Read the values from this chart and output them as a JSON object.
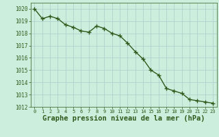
{
  "x": [
    0,
    1,
    2,
    3,
    4,
    5,
    6,
    7,
    8,
    9,
    10,
    11,
    12,
    13,
    14,
    15,
    16,
    17,
    18,
    19,
    20,
    21,
    22,
    23
  ],
  "y": [
    1020.0,
    1019.2,
    1019.4,
    1019.2,
    1018.7,
    1018.5,
    1018.2,
    1018.1,
    1018.6,
    1018.4,
    1018.0,
    1017.8,
    1017.2,
    1016.5,
    1015.9,
    1015.0,
    1014.6,
    1013.5,
    1013.3,
    1013.1,
    1012.6,
    1012.5,
    1012.4,
    1012.3
  ],
  "line_color": "#2d5a1b",
  "marker_color": "#2d5a1b",
  "bg_color": "#cceedd",
  "grid_color": "#aacccc",
  "xlabel": "Graphe pression niveau de la mer (hPa)",
  "xlabel_fontsize": 7.5,
  "tick_color": "#2d5a1b",
  "ylim": [
    1012,
    1020.5
  ],
  "xlim": [
    -0.5,
    23.5
  ],
  "yticks": [
    1012,
    1013,
    1014,
    1015,
    1016,
    1017,
    1018,
    1019,
    1020
  ],
  "xticks": [
    0,
    1,
    2,
    3,
    4,
    5,
    6,
    7,
    8,
    9,
    10,
    11,
    12,
    13,
    14,
    15,
    16,
    17,
    18,
    19,
    20,
    21,
    22,
    23
  ],
  "marker_size": 4.0,
  "line_width": 1.0
}
